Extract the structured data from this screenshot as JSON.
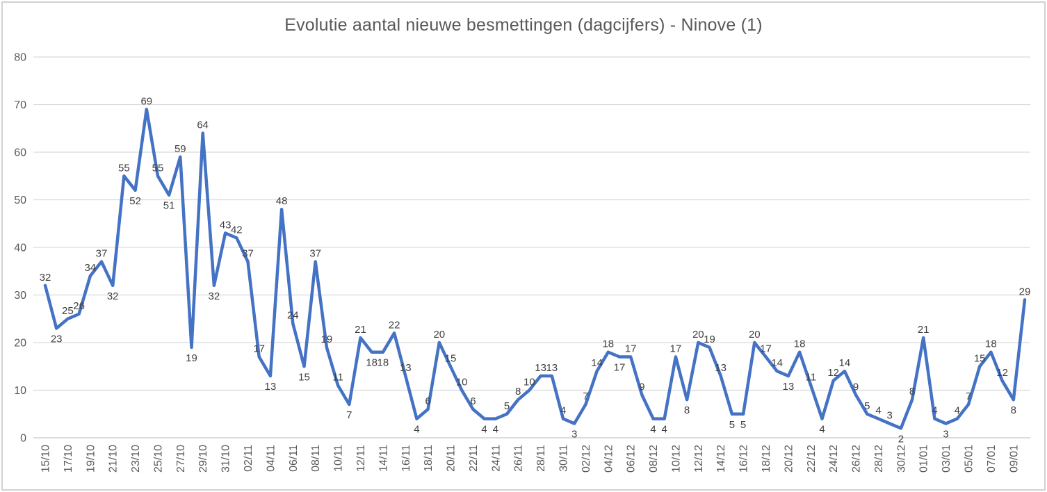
{
  "window": {
    "background": "#ffffff",
    "border_color": "#d2d2d2"
  },
  "chart_data": {
    "type": "line",
    "title": "Evolutie aantal nieuwe besmettingen (dagcijfers) - Ninove (1)",
    "x": [
      "15/10",
      "16/10",
      "17/10",
      "18/10",
      "19/10",
      "20/10",
      "21/10",
      "22/10",
      "23/10",
      "24/10",
      "25/10",
      "26/10",
      "27/10",
      "28/10",
      "29/10",
      "30/10",
      "31/10",
      "01/11",
      "02/11",
      "03/11",
      "04/11",
      "05/11",
      "06/11",
      "07/11",
      "08/11",
      "09/11",
      "10/11",
      "11/11",
      "12/11",
      "13/11",
      "14/11",
      "15/11",
      "16/11",
      "17/11",
      "18/11",
      "19/11",
      "20/11",
      "21/11",
      "22/11",
      "23/11",
      "24/11",
      "25/11",
      "26/11",
      "27/11",
      "28/11",
      "29/11",
      "30/11",
      "01/12",
      "02/12",
      "03/12",
      "04/12",
      "05/12",
      "06/12",
      "07/12",
      "08/12",
      "09/12",
      "10/12",
      "11/12",
      "12/12",
      "13/12",
      "14/12",
      "15/12",
      "16/12",
      "17/12",
      "18/12",
      "19/12",
      "20/12",
      "21/12",
      "22/12",
      "23/12",
      "24/12",
      "25/12",
      "26/12",
      "27/12",
      "28/12",
      "29/12",
      "30/12",
      "31/12",
      "01/01",
      "02/01",
      "03/01",
      "04/01",
      "05/01",
      "06/01",
      "07/01",
      "08/01",
      "09/01",
      "10/01"
    ],
    "values": [
      32,
      23,
      25,
      26,
      34,
      37,
      32,
      55,
      52,
      69,
      55,
      51,
      59,
      19,
      64,
      32,
      43,
      42,
      37,
      17,
      13,
      48,
      24,
      15,
      37,
      19,
      11,
      7,
      21,
      18,
      18,
      22,
      13,
      4,
      6,
      20,
      15,
      10,
      6,
      4,
      4,
      5,
      8,
      10,
      13,
      13,
      4,
      3,
      7,
      14,
      18,
      17,
      17,
      9,
      4,
      4,
      17,
      8,
      20,
      19,
      13,
      5,
      5,
      20,
      17,
      14,
      13,
      18,
      11,
      4,
      12,
      14,
      9,
      5,
      4,
      3,
      2,
      8,
      21,
      4,
      3,
      4,
      7,
      15,
      18,
      12,
      8,
      29
    ],
    "x_tick_every": 2,
    "y_ticks": [
      0,
      10,
      20,
      30,
      40,
      50,
      60,
      70,
      80
    ],
    "ylim": [
      0,
      80
    ],
    "grid": true,
    "legend_position": "none",
    "data_labels_shown": true,
    "colors": {
      "line": "#4472C4",
      "grid": "#D9D9D9",
      "axis_line": "#C6C6C6",
      "axis_text": "#595959",
      "data_label": "#404040",
      "title": "#595959"
    }
  }
}
